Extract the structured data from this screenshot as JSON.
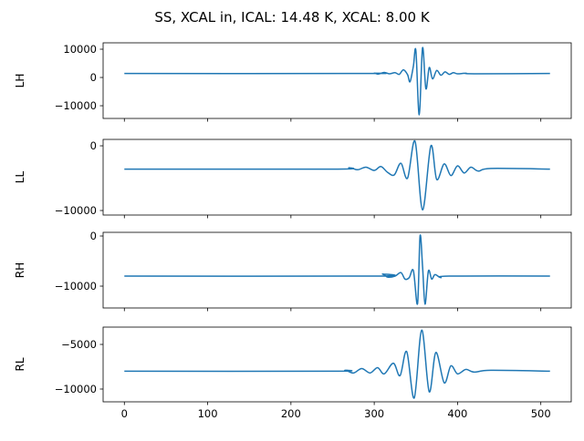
{
  "chart_data": {
    "type": "line",
    "title": "SS, XCAL in, ICAL: 14.48 K, XCAL: 8.00 K",
    "color": "#1f77b4",
    "xlim": [
      -25.5,
      536.5
    ],
    "xticks": [
      0,
      100,
      200,
      300,
      400,
      500
    ],
    "subplots": [
      {
        "ylabel": "LH",
        "ylim": [
          -14500,
          12260
        ],
        "yticks": [
          10000,
          0,
          -10000
        ],
        "yticklabels": [
          "10000",
          "0",
          "−10000"
        ],
        "points": [
          [
            0,
            1400
          ],
          [
            290,
            1400
          ],
          [
            300,
            1500
          ],
          [
            305,
            1200
          ],
          [
            312,
            1800
          ],
          [
            318,
            1300
          ],
          [
            325,
            1700
          ],
          [
            330,
            1100
          ],
          [
            335,
            2700
          ],
          [
            340,
            1000
          ],
          [
            343,
            -1500
          ],
          [
            347,
            4000
          ],
          [
            350,
            9500
          ],
          [
            354,
            -13200
          ],
          [
            358,
            10500
          ],
          [
            362,
            -4000
          ],
          [
            366,
            3500
          ],
          [
            370,
            -500
          ],
          [
            375,
            2500
          ],
          [
            380,
            800
          ],
          [
            385,
            2000
          ],
          [
            390,
            1100
          ],
          [
            395,
            1700
          ],
          [
            400,
            1300
          ],
          [
            410,
            1500
          ],
          [
            420,
            1300
          ],
          [
            511,
            1400
          ]
        ]
      },
      {
        "ylabel": "LL",
        "ylim": [
          -10700,
          990
        ],
        "yticks": [
          0,
          -10000
        ],
        "yticklabels": [
          "0",
          "−10000"
        ],
        "points": [
          [
            0,
            -3600
          ],
          [
            250,
            -3600
          ],
          [
            270,
            -3400
          ],
          [
            280,
            -3700
          ],
          [
            290,
            -3300
          ],
          [
            300,
            -3800
          ],
          [
            308,
            -3200
          ],
          [
            316,
            -4100
          ],
          [
            324,
            -4500
          ],
          [
            332,
            -2700
          ],
          [
            340,
            -5000
          ],
          [
            349,
            700
          ],
          [
            358,
            -9900
          ],
          [
            368,
            0
          ],
          [
            375,
            -5200
          ],
          [
            384,
            -2800
          ],
          [
            392,
            -4600
          ],
          [
            400,
            -3100
          ],
          [
            408,
            -4200
          ],
          [
            416,
            -3300
          ],
          [
            425,
            -3900
          ],
          [
            440,
            -3500
          ],
          [
            511,
            -3600
          ]
        ]
      },
      {
        "ylabel": "RH",
        "ylim": [
          -14360,
          730
        ],
        "yticks": [
          0,
          -10000
        ],
        "yticklabels": [
          "0",
          "−10000"
        ],
        "points": [
          [
            0,
            -8000
          ],
          [
            300,
            -8000
          ],
          [
            310,
            -7600
          ],
          [
            316,
            -8200
          ],
          [
            325,
            -8000
          ],
          [
            332,
            -7300
          ],
          [
            337,
            -8600
          ],
          [
            342,
            -8300
          ],
          [
            347,
            -6900
          ],
          [
            352,
            -13500
          ],
          [
            355,
            0
          ],
          [
            358,
            -6000
          ],
          [
            361,
            -13600
          ],
          [
            365,
            -7000
          ],
          [
            369,
            -8600
          ],
          [
            373,
            -7700
          ],
          [
            380,
            -8300
          ],
          [
            390,
            -8000
          ],
          [
            511,
            -8000
          ]
        ]
      },
      {
        "ylabel": "RL",
        "ylim": [
          -11430,
          -3060
        ],
        "yticks": [
          -5000,
          -10000
        ],
        "yticklabels": [
          "−5000",
          "−10000"
        ],
        "points": [
          [
            0,
            -8000
          ],
          [
            250,
            -8000
          ],
          [
            265,
            -7900
          ],
          [
            275,
            -8200
          ],
          [
            285,
            -7700
          ],
          [
            295,
            -8200
          ],
          [
            304,
            -7600
          ],
          [
            312,
            -8300
          ],
          [
            323,
            -7100
          ],
          [
            331,
            -8500
          ],
          [
            339,
            -5800
          ],
          [
            348,
            -11000
          ],
          [
            357,
            -3400
          ],
          [
            366,
            -10300
          ],
          [
            374,
            -5900
          ],
          [
            384,
            -9300
          ],
          [
            392,
            -7400
          ],
          [
            400,
            -8300
          ],
          [
            410,
            -7800
          ],
          [
            420,
            -8100
          ],
          [
            440,
            -7900
          ],
          [
            511,
            -8000
          ]
        ]
      }
    ]
  }
}
